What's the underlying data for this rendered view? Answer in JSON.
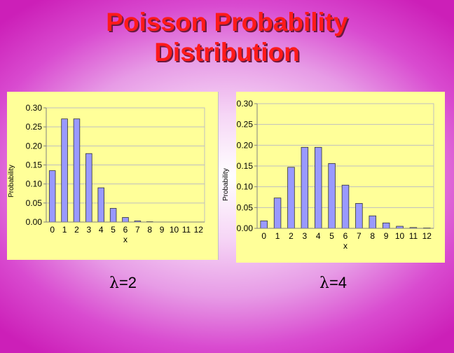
{
  "slide": {
    "title_line1": "Poisson Probability",
    "title_line2": "Distribution",
    "lambda_symbol": "λ",
    "caption_left": "=2",
    "caption_right": "=4"
  },
  "chart_data": [
    {
      "type": "bar",
      "title": "",
      "xlabel": "x",
      "ylabel": "Probability",
      "ylim": [
        0,
        0.3
      ],
      "yticks": [
        "0.00",
        "0.05",
        "0.10",
        "0.15",
        "0.20",
        "0.25",
        "0.30"
      ],
      "grid": true,
      "categories": [
        "0",
        "1",
        "2",
        "3",
        "4",
        "5",
        "6",
        "7",
        "8",
        "9",
        "10",
        "11",
        "12"
      ],
      "series": [
        {
          "values": [
            0.135,
            0.271,
            0.271,
            0.18,
            0.09,
            0.036,
            0.012,
            0.003,
            0.001,
            0.0002,
            0.0,
            0.0,
            0.0
          ]
        }
      ],
      "bar_color": "#9999ff"
    },
    {
      "type": "bar",
      "title": "",
      "xlabel": "x",
      "ylabel": "Probability",
      "ylim": [
        0,
        0.3
      ],
      "yticks": [
        "0.00",
        "0.05",
        "0.10",
        "0.15",
        "0.20",
        "0.25",
        "0.30"
      ],
      "grid": true,
      "categories": [
        "0",
        "1",
        "2",
        "3",
        "4",
        "5",
        "6",
        "7",
        "8",
        "9",
        "10",
        "11",
        "12"
      ],
      "series": [
        {
          "values": [
            0.018,
            0.073,
            0.147,
            0.195,
            0.195,
            0.156,
            0.104,
            0.06,
            0.03,
            0.013,
            0.005,
            0.002,
            0.001
          ]
        }
      ],
      "bar_color": "#9999ff"
    }
  ]
}
